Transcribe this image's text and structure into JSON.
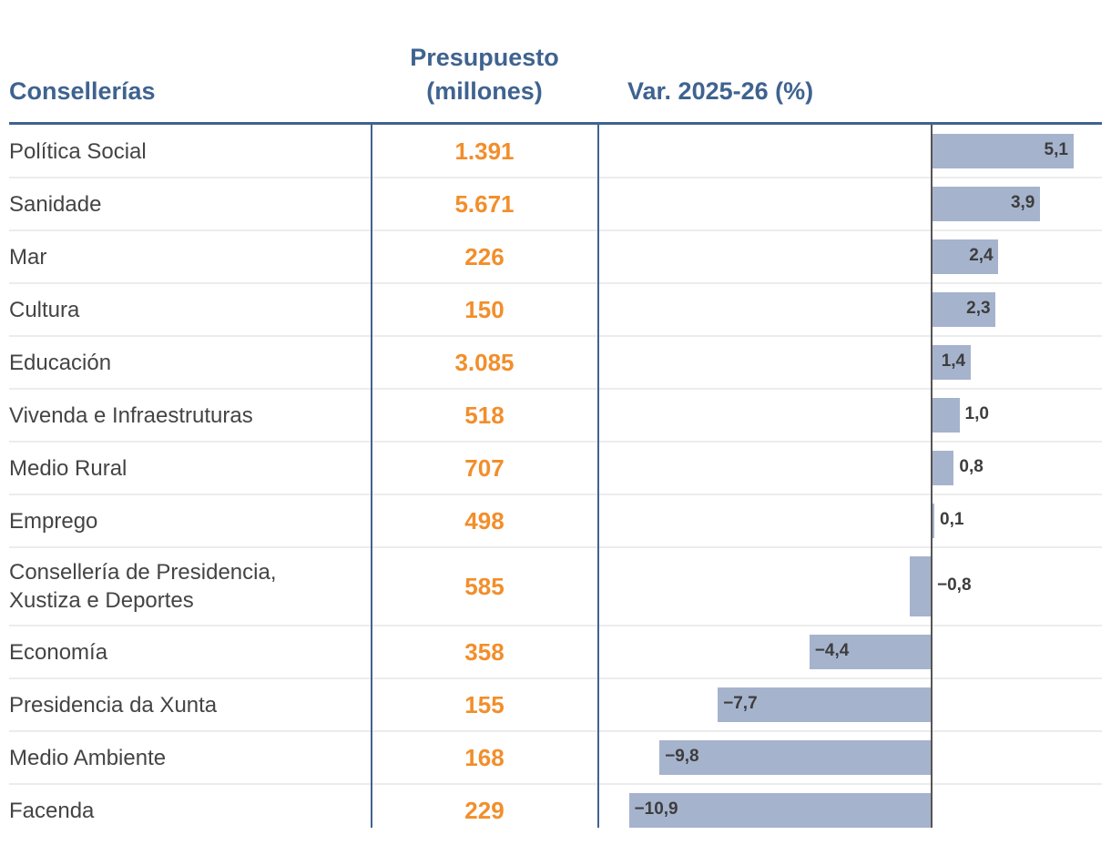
{
  "header": {
    "name": "Consellerías",
    "budget_line1": "Presupuesto",
    "budget_line2": "(millones)",
    "variation": "Var. 2025-26 (%)"
  },
  "colors": {
    "header": "#3f6390",
    "budget": "#f28e2b",
    "bar": "#a6b3cd",
    "rule": "#3f6390",
    "axis": "#555555"
  },
  "chart_data": {
    "type": "table",
    "title": "",
    "columns": [
      "Consellerías",
      "Presupuesto (millones)",
      "Var. 2025-26 (%)"
    ],
    "rows": [
      {
        "name": "Política Social",
        "budget": "1.391",
        "variation": 5.1,
        "label": "5,1"
      },
      {
        "name": "Sanidade",
        "budget": "5.671",
        "variation": 3.9,
        "label": "3,9"
      },
      {
        "name": "Mar",
        "budget": "226",
        "variation": 2.4,
        "label": "2,4"
      },
      {
        "name": "Cultura",
        "budget": "150",
        "variation": 2.3,
        "label": "2,3"
      },
      {
        "name": "Educación",
        "budget": "3.085",
        "variation": 1.4,
        "label": "1,4"
      },
      {
        "name": "Vivenda e Infraestruturas",
        "budget": "518",
        "variation": 1.0,
        "label": "1,0"
      },
      {
        "name": "Medio Rural",
        "budget": "707",
        "variation": 0.8,
        "label": "0,8"
      },
      {
        "name": "Emprego",
        "budget": "498",
        "variation": 0.1,
        "label": "0,1"
      },
      {
        "name": "Consellería de Presidencia,\nXustiza e Deportes",
        "budget": "585",
        "variation": -0.8,
        "label": "−0,8"
      },
      {
        "name": "Economía",
        "budget": "358",
        "variation": -4.4,
        "label": "−4,4"
      },
      {
        "name": "Presidencia da Xunta",
        "budget": "155",
        "variation": -7.7,
        "label": "−7,7"
      },
      {
        "name": "Medio Ambiente",
        "budget": "168",
        "variation": -9.8,
        "label": "−9,8"
      },
      {
        "name": "Facenda",
        "budget": "229",
        "variation": -10.9,
        "label": "−10,9"
      }
    ]
  }
}
